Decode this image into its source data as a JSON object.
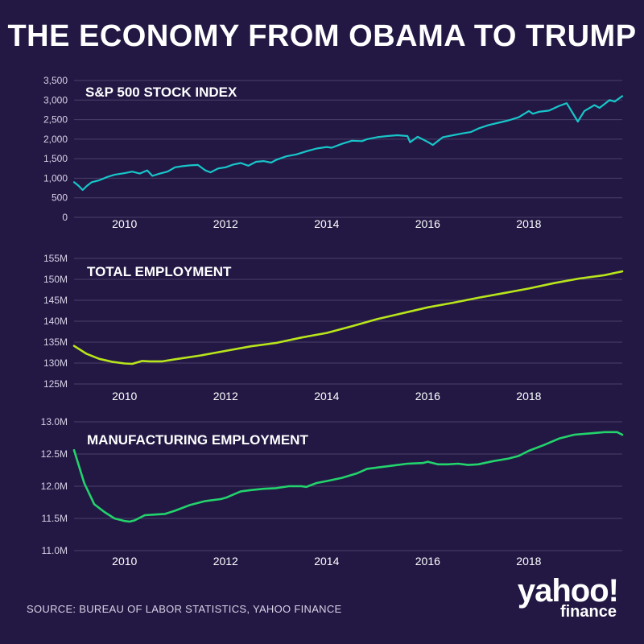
{
  "title": "THE ECONOMY FROM OBAMA TO TRUMP",
  "source": "SOURCE:  BUREAU OF LABOR STATISTICS, YAHOO FINANCE",
  "logo": {
    "main": "yahoo!",
    "sub": "finance"
  },
  "colors": {
    "background": "#231844",
    "sp500_line": "#17c6c9",
    "total_employment_line": "#b8e61a",
    "manufacturing_line": "#23d36b"
  },
  "chart_data": [
    {
      "type": "line",
      "title": "S&P 500 STOCK INDEX",
      "x_ticks": [
        "2010",
        "2012",
        "2014",
        "2016",
        "2018"
      ],
      "x_tick_values": [
        2010,
        2012,
        2014,
        2016,
        2018
      ],
      "xlim": [
        2009.0,
        2019.85
      ],
      "ylim": [
        0,
        3500
      ],
      "y_ticks": [
        0,
        500,
        1000,
        1500,
        2000,
        2500,
        3000,
        3500
      ],
      "y_tick_labels": [
        "0",
        "500",
        "1,000",
        "1,500",
        "2,000",
        "2,500",
        "3,000",
        "3,500"
      ],
      "series": [
        {
          "name": "S&P 500",
          "x": [
            2009.0,
            2009.08,
            2009.17,
            2009.25,
            2009.35,
            2009.5,
            2009.65,
            2009.8,
            2010.0,
            2010.15,
            2010.3,
            2010.45,
            2010.55,
            2010.7,
            2010.85,
            2011.0,
            2011.15,
            2011.3,
            2011.45,
            2011.6,
            2011.7,
            2011.85,
            2012.0,
            2012.15,
            2012.3,
            2012.45,
            2012.6,
            2012.75,
            2012.9,
            2013.0,
            2013.2,
            2013.4,
            2013.6,
            2013.8,
            2014.0,
            2014.1,
            2014.3,
            2014.5,
            2014.7,
            2014.8,
            2015.0,
            2015.2,
            2015.4,
            2015.6,
            2015.65,
            2015.8,
            2016.0,
            2016.1,
            2016.3,
            2016.5,
            2016.7,
            2016.85,
            2017.0,
            2017.2,
            2017.4,
            2017.6,
            2017.8,
            2018.0,
            2018.08,
            2018.2,
            2018.4,
            2018.6,
            2018.75,
            2018.97,
            2019.1,
            2019.3,
            2019.4,
            2019.6,
            2019.7,
            2019.85
          ],
          "values": [
            900,
            820,
            700,
            800,
            900,
            950,
            1030,
            1090,
            1130,
            1170,
            1120,
            1200,
            1060,
            1120,
            1170,
            1280,
            1310,
            1330,
            1340,
            1200,
            1150,
            1250,
            1280,
            1350,
            1390,
            1320,
            1420,
            1440,
            1400,
            1470,
            1560,
            1610,
            1690,
            1760,
            1800,
            1780,
            1880,
            1960,
            1950,
            2000,
            2050,
            2080,
            2100,
            2080,
            1920,
            2060,
            1930,
            1850,
            2050,
            2100,
            2150,
            2180,
            2270,
            2360,
            2420,
            2480,
            2560,
            2720,
            2650,
            2700,
            2730,
            2850,
            2920,
            2450,
            2720,
            2870,
            2800,
            3000,
            2960,
            3100
          ]
        }
      ]
    },
    {
      "type": "line",
      "title": "TOTAL EMPLOYMENT",
      "x_ticks": [
        "2010",
        "2012",
        "2014",
        "2016",
        "2018"
      ],
      "x_tick_values": [
        2010,
        2012,
        2014,
        2016,
        2018
      ],
      "xlim": [
        2009.0,
        2019.85
      ],
      "ylim": [
        125,
        155
      ],
      "y_ticks": [
        125,
        130,
        135,
        140,
        145,
        150,
        155
      ],
      "y_tick_labels": [
        "125M",
        "130M",
        "135M",
        "140M",
        "145M",
        "150M",
        "155M"
      ],
      "series": [
        {
          "name": "Total employment (millions)",
          "x": [
            2009.0,
            2009.25,
            2009.5,
            2009.75,
            2010.0,
            2010.15,
            2010.35,
            2010.5,
            2010.75,
            2011.0,
            2011.5,
            2012.0,
            2012.5,
            2013.0,
            2013.5,
            2014.0,
            2014.5,
            2015.0,
            2015.5,
            2016.0,
            2016.5,
            2017.0,
            2017.5,
            2018.0,
            2018.5,
            2019.0,
            2019.5,
            2019.85
          ],
          "values": [
            134.1,
            132.2,
            131.0,
            130.3,
            129.9,
            129.8,
            130.5,
            130.4,
            130.4,
            130.9,
            131.8,
            132.9,
            134.0,
            134.8,
            136.1,
            137.2,
            138.8,
            140.5,
            141.9,
            143.3,
            144.4,
            145.6,
            146.7,
            147.8,
            149.1,
            150.2,
            151.0,
            151.9
          ]
        }
      ]
    },
    {
      "type": "line",
      "title": "MANUFACTURING EMPLOYMENT",
      "x_ticks": [
        "2010",
        "2012",
        "2014",
        "2016",
        "2018"
      ],
      "x_tick_values": [
        2010,
        2012,
        2014,
        2016,
        2018
      ],
      "xlim": [
        2009.0,
        2019.85
      ],
      "ylim": [
        11.0,
        13.0
      ],
      "y_ticks": [
        11.0,
        11.5,
        12.0,
        12.5,
        13.0
      ],
      "y_tick_labels": [
        "11.0M",
        "11.5M",
        "12.0M",
        "12.5M",
        "13.0M"
      ],
      "series": [
        {
          "name": "Manufacturing employment (millions)",
          "x": [
            2009.0,
            2009.2,
            2009.4,
            2009.6,
            2009.8,
            2010.0,
            2010.1,
            2010.2,
            2010.4,
            2010.6,
            2010.8,
            2011.0,
            2011.3,
            2011.6,
            2011.9,
            2012.0,
            2012.3,
            2012.5,
            2012.75,
            2013.0,
            2013.25,
            2013.5,
            2013.6,
            2013.8,
            2014.0,
            2014.3,
            2014.6,
            2014.8,
            2015.0,
            2015.3,
            2015.6,
            2015.9,
            2016.0,
            2016.2,
            2016.4,
            2016.6,
            2016.8,
            2017.0,
            2017.3,
            2017.6,
            2017.8,
            2018.0,
            2018.3,
            2018.6,
            2018.9,
            2019.2,
            2019.5,
            2019.75,
            2019.85
          ],
          "values": [
            12.56,
            12.05,
            11.72,
            11.6,
            11.5,
            11.46,
            11.45,
            11.47,
            11.55,
            11.56,
            11.57,
            11.62,
            11.71,
            11.77,
            11.8,
            11.82,
            11.92,
            11.94,
            11.96,
            11.97,
            12.0,
            12.0,
            11.99,
            12.05,
            12.08,
            12.13,
            12.2,
            12.27,
            12.29,
            12.32,
            12.35,
            12.36,
            12.38,
            12.34,
            12.34,
            12.35,
            12.33,
            12.34,
            12.39,
            12.43,
            12.47,
            12.55,
            12.64,
            12.74,
            12.8,
            12.82,
            12.84,
            12.84,
            12.8
          ]
        }
      ]
    }
  ]
}
